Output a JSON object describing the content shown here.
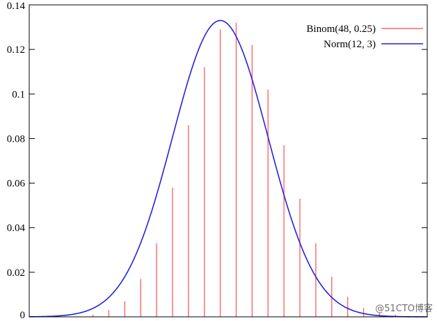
{
  "chart_data": {
    "type": "bar",
    "xlim": [
      0,
      25
    ],
    "ylim": [
      0,
      0.14
    ],
    "grid": false,
    "legend_position": "top-right",
    "yticks": [
      "0",
      "0.02",
      "0.04",
      "0.06",
      "0.08",
      "0.1",
      "0.12",
      "0.14"
    ],
    "ytick_values": [
      0,
      0.02,
      0.04,
      0.06,
      0.08,
      0.1,
      0.12,
      0.14
    ],
    "series": [
      {
        "name": "Binom(48, 0.25)",
        "type": "bar",
        "color": "#ff6666",
        "x": [
          1,
          2,
          3,
          4,
          5,
          6,
          7,
          8,
          9,
          10,
          11,
          12,
          13,
          14,
          15,
          16,
          17,
          18,
          19,
          20,
          21,
          22,
          23,
          24
        ],
        "values": [
          0.0,
          0.0,
          0.0,
          0.001,
          0.003,
          0.007,
          0.017,
          0.033,
          0.058,
          0.086,
          0.112,
          0.129,
          0.132,
          0.122,
          0.102,
          0.077,
          0.053,
          0.033,
          0.018,
          0.009,
          0.004,
          0.002,
          0.001,
          0.0
        ]
      },
      {
        "name": "Norm(12, 3)",
        "type": "line",
        "color": "#2222dd",
        "mean": 12,
        "sd": 3
      }
    ]
  },
  "watermark": "@51CTO博客"
}
